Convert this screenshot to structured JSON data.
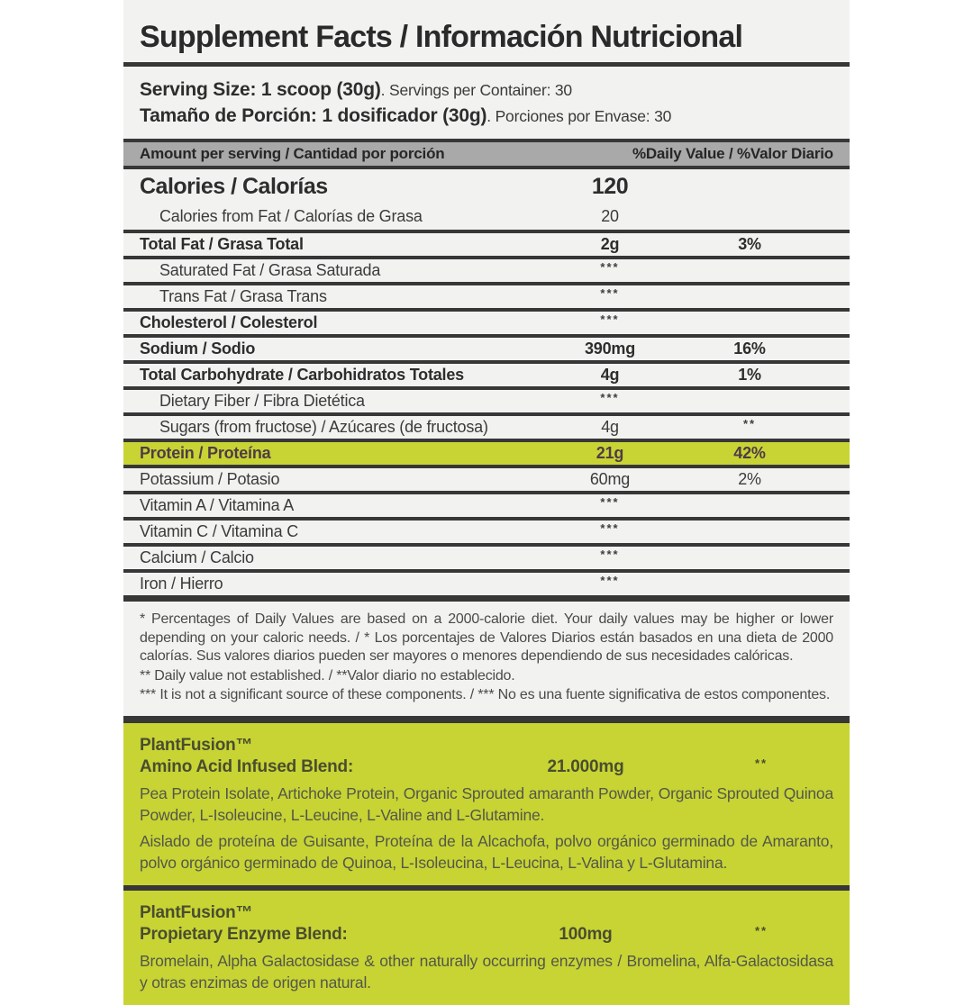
{
  "title": "Supplement Facts / Información Nutricional",
  "serving": {
    "en_bold": "Serving Size: 1 scoop (30g)",
    "en_rest": ". Servings per Container: 30",
    "es_bold": "Tamaño de Porción: 1 dosificador (30g)",
    "es_rest": ". Porciones por Envase: 30"
  },
  "header_bar": {
    "left": "Amount per serving / Cantidad por porción",
    "right": "%Daily Value / %Valor Diario"
  },
  "rows": [
    {
      "label": "Calories / Calorías",
      "amount": "120",
      "dv": ""
    },
    {
      "label": "Calories from Fat / Calorías de Grasa",
      "amount": "20",
      "dv": ""
    },
    {
      "label": "Total Fat / Grasa Total",
      "amount": "2g",
      "dv": "3%"
    },
    {
      "label": "Saturated Fat / Grasa Saturada",
      "amount": "***",
      "dv": ""
    },
    {
      "label": "Trans Fat / Grasa Trans",
      "amount": "***",
      "dv": ""
    },
    {
      "label": "Cholesterol / Colesterol",
      "amount": "***",
      "dv": ""
    },
    {
      "label": "Sodium / Sodio",
      "amount": "390mg",
      "dv": "16%"
    },
    {
      "label": "Total Carbohydrate / Carbohidratos Totales",
      "amount": "4g",
      "dv": "1%"
    },
    {
      "label": "Dietary Fiber / Fibra Dietética",
      "amount": "***",
      "dv": ""
    },
    {
      "label": "Sugars (from fructose) / Azúcares (de fructosa)",
      "amount": "4g",
      "dv": "**"
    },
    {
      "label": "Protein / Proteína",
      "amount": "21g",
      "dv": "42%"
    },
    {
      "label": "Potassium / Potasio",
      "amount": "60mg",
      "dv": "2%"
    },
    {
      "label": "Vitamin A / Vitamina A",
      "amount": "***",
      "dv": ""
    },
    {
      "label": "Vitamin C / Vitamina C",
      "amount": "***",
      "dv": ""
    },
    {
      "label": "Calcium / Calcio",
      "amount": "***",
      "dv": ""
    },
    {
      "label": "Iron / Hierro",
      "amount": "***",
      "dv": ""
    }
  ],
  "footnotes": [
    "* Percentages of Daily Values are based on a 2000-calorie diet. Your daily values may be higher or lower depending on your caloric needs. / * Los porcentajes de Valores Diarios están basados en una dieta de 2000 calorías. Sus valores diarios pueden ser mayores o menores dependiendo de sus necesidades calóricas.",
    "** Daily value not established. / **Valor diario no establecido.",
    "*** It is not a significant source of these components. / *** No es una fuente significativa de estos componentes."
  ],
  "blends": [
    {
      "brand": "PlantFusion™",
      "name": "Amino Acid Infused Blend:",
      "amount": "21.000mg",
      "dv": "**",
      "desc_en": "Pea Protein Isolate, Artichoke Protein, Organic Sprouted amaranth Powder, Organic Sprouted Quinoa Powder, L-Isoleucine, L-Leucine, L-Valine and L-Glutamine.",
      "desc_es": "Aislado de proteína de Guisante, Proteína de la Alcachofa, polvo orgánico germinado de Amaranto, polvo orgánico germinado de Quinoa, L-Isoleucina, L-Leucina, L-Valina y L-Glutamina."
    },
    {
      "brand": "PlantFusion™",
      "name": "Propietary Enzyme Blend:",
      "amount": "100mg",
      "dv": "**",
      "desc_en": "Bromelain, Alpha Galactosidase & other naturally occurring enzymes / Bromelina, Alfa-Galactosidasa y otras enzimas de origen natural.",
      "desc_es": ""
    }
  ],
  "colors": {
    "green": "#c7d434",
    "protein_text": "#503b46",
    "bar_gray": "#a9a9a9",
    "line": "#373737",
    "label_bg": "#f2f2f0"
  }
}
